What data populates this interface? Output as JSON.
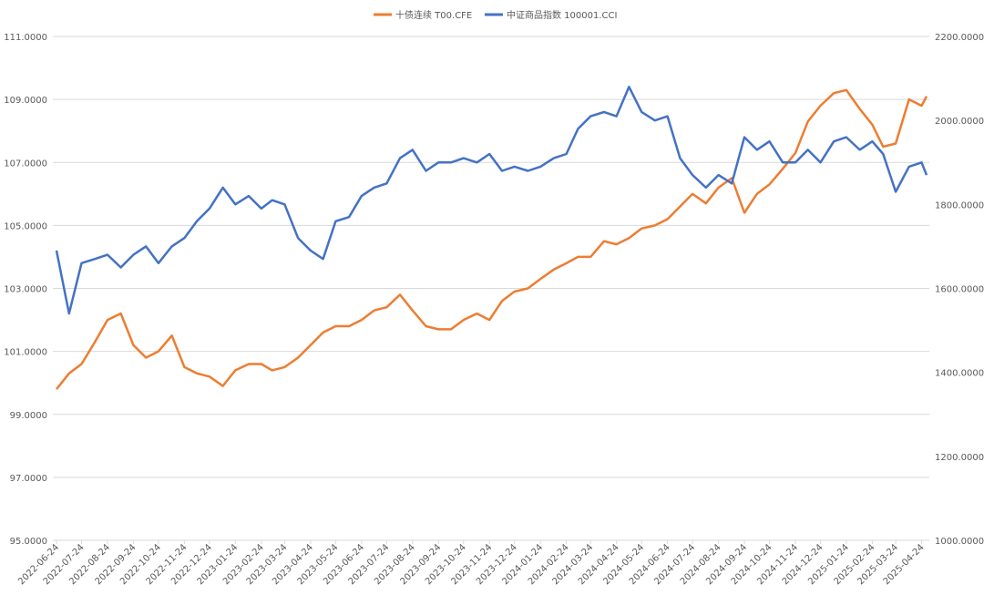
{
  "chart_data": {
    "type": "line",
    "x": [
      "2022-06-24",
      "2022-07-09",
      "2022-07-24",
      "2022-08-09",
      "2022-08-24",
      "2022-09-09",
      "2022-09-24",
      "2022-10-09",
      "2022-10-24",
      "2022-11-09",
      "2022-11-24",
      "2022-12-09",
      "2022-12-24",
      "2023-01-09",
      "2023-01-24",
      "2023-02-09",
      "2023-02-24",
      "2023-03-09",
      "2023-03-24",
      "2023-04-09",
      "2023-04-24",
      "2023-05-09",
      "2023-05-24",
      "2023-06-09",
      "2023-06-24",
      "2023-07-09",
      "2023-07-24",
      "2023-08-09",
      "2023-08-24",
      "2023-09-09",
      "2023-09-24",
      "2023-10-09",
      "2023-10-24",
      "2023-11-09",
      "2023-11-24",
      "2023-12-09",
      "2023-12-24",
      "2024-01-09",
      "2024-01-24",
      "2024-02-09",
      "2024-02-24",
      "2024-03-09",
      "2024-03-24",
      "2024-04-09",
      "2024-04-24",
      "2024-05-09",
      "2024-05-24",
      "2024-06-09",
      "2024-06-24",
      "2024-07-09",
      "2024-07-24",
      "2024-08-09",
      "2024-08-24",
      "2024-09-09",
      "2024-09-24",
      "2024-10-09",
      "2024-10-24",
      "2024-11-09",
      "2024-11-24",
      "2024-12-09",
      "2024-12-24",
      "2025-01-09",
      "2025-01-24",
      "2025-02-09",
      "2025-02-24",
      "2025-03-09",
      "2025-03-24",
      "2025-04-09",
      "2025-04-24",
      "2025-04-30"
    ],
    "xlim": [
      "2022-06-24",
      "2025-04-30"
    ],
    "xticks": [
      "2022-06-24",
      "2022-07-24",
      "2022-08-24",
      "2022-09-24",
      "2022-10-24",
      "2022-11-24",
      "2022-12-24",
      "2023-01-24",
      "2023-02-24",
      "2023-03-24",
      "2023-04-24",
      "2023-05-24",
      "2023-06-24",
      "2023-07-24",
      "2023-08-24",
      "2023-09-24",
      "2023-10-24",
      "2023-11-24",
      "2023-12-24",
      "2024-01-24",
      "2024-02-24",
      "2024-03-24",
      "2024-04-24",
      "2024-05-24",
      "2024-06-24",
      "2024-07-24",
      "2024-08-24",
      "2024-09-24",
      "2024-10-24",
      "2024-11-24",
      "2024-12-24",
      "2025-01-24",
      "2025-02-24",
      "2025-03-24",
      "2025-04-24"
    ],
    "series": [
      {
        "name": "十债连续 T00.CFE",
        "color": "#ed7d31",
        "values": [
          99.8,
          100.3,
          100.6,
          101.3,
          102.0,
          102.2,
          101.2,
          100.8,
          101.0,
          101.5,
          100.5,
          100.3,
          100.2,
          99.9,
          100.4,
          100.6,
          100.6,
          100.4,
          100.5,
          100.8,
          101.2,
          101.6,
          101.8,
          101.8,
          102.0,
          102.3,
          102.4,
          102.8,
          102.3,
          101.8,
          101.7,
          101.7,
          102.0,
          102.2,
          102.0,
          102.6,
          102.9,
          103.0,
          103.3,
          103.6,
          103.8,
          104.0,
          104.0,
          104.5,
          104.4,
          104.6,
          104.9,
          105.0,
          105.2,
          105.6,
          106.0,
          105.7,
          106.2,
          106.5,
          105.4,
          106.0,
          106.3,
          106.8,
          107.3,
          108.3,
          108.8,
          109.2,
          109.3,
          108.7,
          108.2,
          107.5,
          107.6,
          109.0,
          108.8,
          109.1
        ]
      },
      {
        "name": "中证商品指数 100001.CCI",
        "color": "#4472c4",
        "axis": "y2",
        "values": [
          1690,
          1540,
          1660,
          1670,
          1680,
          1650,
          1680,
          1700,
          1660,
          1700,
          1720,
          1760,
          1790,
          1840,
          1800,
          1820,
          1790,
          1810,
          1800,
          1720,
          1690,
          1670,
          1760,
          1770,
          1820,
          1840,
          1850,
          1910,
          1930,
          1880,
          1900,
          1900,
          1910,
          1900,
          1920,
          1880,
          1890,
          1880,
          1890,
          1910,
          1920,
          1980,
          2010,
          2020,
          2010,
          2080,
          2020,
          2000,
          2010,
          1910,
          1870,
          1840,
          1870,
          1850,
          1960,
          1930,
          1950,
          1900,
          1900,
          1930,
          1900,
          1950,
          1960,
          1930,
          1950,
          1920,
          1830,
          1890,
          1900,
          1870
        ]
      }
    ],
    "ylim": [
      95,
      111
    ],
    "yticks": [
      {
        "value": 95,
        "label": "95.0000"
      },
      {
        "value": 97,
        "label": "97.0000"
      },
      {
        "value": 99,
        "label": "99.0000"
      },
      {
        "value": 101,
        "label": "101.0000"
      },
      {
        "value": 103,
        "label": "103.0000"
      },
      {
        "value": 105,
        "label": "105.0000"
      },
      {
        "value": 107,
        "label": "107.0000"
      },
      {
        "value": 109,
        "label": "109.0000"
      },
      {
        "value": 111,
        "label": "111.0000"
      }
    ],
    "y2lim": [
      1000,
      2200
    ],
    "y2ticks": [
      {
        "value": 1000,
        "label": "1000.0000"
      },
      {
        "value": 1200,
        "label": "1200.0000"
      },
      {
        "value": 1400,
        "label": "1400.0000"
      },
      {
        "value": 1600,
        "label": "1600.0000"
      },
      {
        "value": 1800,
        "label": "1800.0000"
      },
      {
        "value": 2000,
        "label": "2000.0000"
      },
      {
        "value": 2200,
        "label": "2200.0000"
      }
    ],
    "grid": true,
    "legend": "top"
  }
}
